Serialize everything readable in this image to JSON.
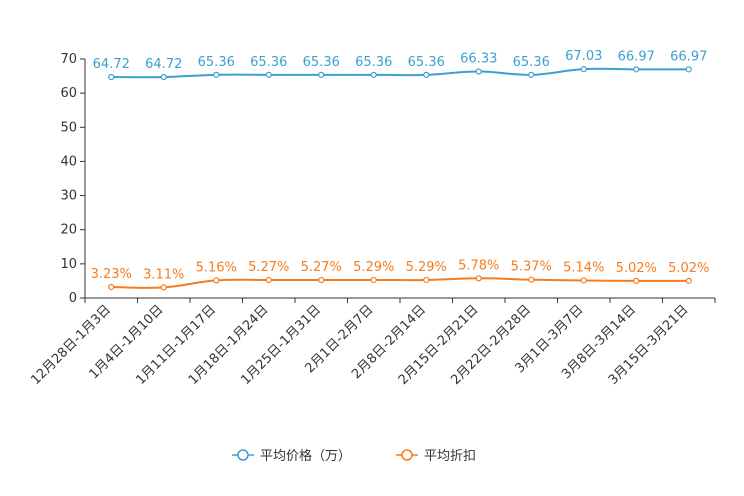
{
  "chart_data": {
    "type": "line",
    "categories": [
      "12月28日-1月3日",
      "1月4日-1月10日",
      "1月11日-1月17日",
      "1月18日-1月24日",
      "1月25日-1月31日",
      "2月1日-2月7日",
      "2月8日-2月14日",
      "2月15日-2月21日",
      "2月22日-2月28日",
      "3月1日-3月7日",
      "3月8日-3月14日",
      "3月15日-3月21日"
    ],
    "series": [
      {
        "name": "平均价格（万）",
        "color": "#3ba0d0",
        "values": [
          64.72,
          64.72,
          65.36,
          65.36,
          65.36,
          65.36,
          65.36,
          66.33,
          65.36,
          67.03,
          66.97,
          66.97
        ],
        "labels": [
          "64.72",
          "64.72",
          "65.36",
          "65.36",
          "65.36",
          "65.36",
          "65.36",
          "66.33",
          "65.36",
          "67.03",
          "66.97",
          "66.97"
        ]
      },
      {
        "name": "平均折扣",
        "color": "#f57c1f",
        "values": [
          3.23,
          3.11,
          5.16,
          5.27,
          5.27,
          5.29,
          5.29,
          5.78,
          5.37,
          5.14,
          5.02,
          5.02
        ],
        "labels": [
          "3.23%",
          "3.11%",
          "5.16%",
          "5.27%",
          "5.27%",
          "5.29%",
          "5.29%",
          "5.78%",
          "5.37%",
          "5.14%",
          "5.02%",
          "5.02%"
        ]
      }
    ],
    "yaxis": {
      "min": 0,
      "max": 70,
      "ticks": [
        "0",
        "10",
        "20",
        "30",
        "40",
        "50",
        "60",
        "70"
      ]
    },
    "title": "",
    "xlabel": "",
    "ylabel": "",
    "legend_position": "bottom-center"
  }
}
